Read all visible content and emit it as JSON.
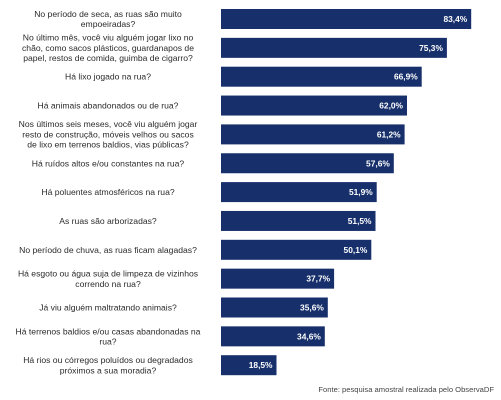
{
  "chart_data": {
    "type": "bar",
    "orientation": "horizontal",
    "categories": [
      "No período de seca, as ruas são muito empoeiradas?",
      "No último mês, você viu alguém jogar lixo no chão, como sacos plásticos, guardanapos de papel, restos de comida, guimba de cigarro?",
      "Há lixo jogado na rua?",
      "Há animais abandonados ou de rua?",
      "Nos últimos seis meses, você viu alguém jogar resto de construção, móveis velhos ou sacos de lixo em terrenos baldios, vias públicas?",
      "Há ruídos altos e/ou constantes na rua?",
      "Há poluentes atmosféricos na rua?",
      "As ruas são arborizadas?",
      "No período de chuva, as ruas ficam alagadas?",
      "Há esgoto ou água suja de limpeza de vizinhos correndo na rua?",
      "Já viu alguém maltratando animais?",
      "Há terrenos baldios e/ou casas abandonadas na rua?",
      "Há rios ou córregos poluídos ou degradados próximos a sua moradia?"
    ],
    "values": [
      83.4,
      75.3,
      66.9,
      62.0,
      61.2,
      57.6,
      51.9,
      51.5,
      50.1,
      37.7,
      35.6,
      34.6,
      18.5
    ],
    "value_labels": [
      "83,4%",
      "75,3%",
      "66,9%",
      "62,0%",
      "61,2%",
      "57,6%",
      "51,9%",
      "51,5%",
      "50,1%",
      "37,7%",
      "35,6%",
      "34,6%",
      "18,5%"
    ],
    "label_lines": [
      [
        "No período de seca, as ruas são muito",
        "empoeiradas?"
      ],
      [
        "No último mês, você viu alguém jogar lixo no",
        "chão, como sacos plásticos, guardanapos de",
        "papel, restos de comida, guimba de cigarro?"
      ],
      [
        "Há lixo jogado na rua?"
      ],
      [
        "Há animais abandonados ou de rua?"
      ],
      [
        "Nos últimos seis meses, você viu alguém jogar",
        "resto de construção, móveis velhos ou sacos",
        "de lixo em terrenos baldios, vias públicas?"
      ],
      [
        "Há ruídos altos e/ou constantes na rua?"
      ],
      [
        "Há poluentes atmosféricos na rua?"
      ],
      [
        "As ruas são arborizadas?"
      ],
      [
        "No período de chuva, as ruas ficam alagadas?"
      ],
      [
        "Há esgoto ou água suja de limpeza de vizinhos",
        "correndo na rua?"
      ],
      [
        "Já viu alguém maltratando animais?"
      ],
      [
        "Há terrenos baldios e/ou casas abandonadas na",
        "rua?"
      ],
      [
        "Há rios ou córregos poluídos ou degradados",
        "próximos a sua moradia?"
      ]
    ],
    "xlim": [
      0,
      100
    ],
    "grid": false,
    "bar_color": "#17306b",
    "source": "Fonte: pesquisa amostral realizada pelo ObservaDF"
  }
}
